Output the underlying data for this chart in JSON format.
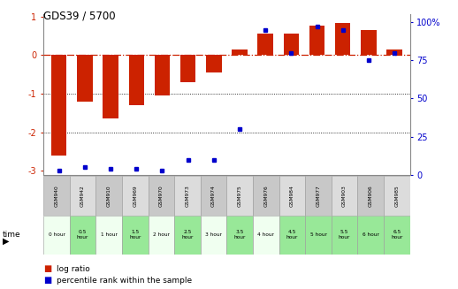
{
  "title": "GDS39 / 5700",
  "samples": [
    "GSM940",
    "GSM942",
    "GSM910",
    "GSM969",
    "GSM970",
    "GSM973",
    "GSM974",
    "GSM975",
    "GSM976",
    "GSM984",
    "GSM977",
    "GSM903",
    "GSM906",
    "GSM985"
  ],
  "times": [
    "0 hour",
    "0.5\nhour",
    "1 hour",
    "1.5\nhour",
    "2 hour",
    "2.5\nhour",
    "3 hour",
    "3.5\nhour",
    "4 hour",
    "4.5\nhour",
    "5 hour",
    "5.5\nhour",
    "6 hour",
    "6.5\nhour"
  ],
  "log_ratio": [
    -2.6,
    -1.2,
    -1.65,
    -1.3,
    -1.05,
    -0.7,
    -0.45,
    0.15,
    0.55,
    0.55,
    0.75,
    0.82,
    0.65,
    0.15
  ],
  "percentile": [
    3,
    5,
    4,
    4,
    3,
    10,
    10,
    30,
    95,
    80,
    97,
    95,
    75,
    80
  ],
  "bar_color": "#cc2200",
  "dot_color": "#0000cc",
  "zero_line_color": "#cc2200",
  "bg_color": "#ffffff",
  "grid_color": "#000000",
  "ylim": [
    -3.1,
    1.05
  ],
  "right_ylim": [
    0,
    105
  ],
  "right_yticks": [
    0,
    25,
    50,
    75,
    100
  ],
  "right_ytick_labels": [
    "0",
    "25",
    "50",
    "75",
    "100%"
  ],
  "left_yticks": [
    -3,
    -2,
    -1,
    0,
    1
  ],
  "time_bg_colors": [
    "#f0fff0",
    "#98e898",
    "#f0fff0",
    "#98e898",
    "#f0fff0",
    "#98e898",
    "#f0fff0",
    "#98e898",
    "#f0fff0",
    "#98e898",
    "#98e898",
    "#98e898",
    "#98e898",
    "#98e898"
  ],
  "sample_bg_colors": [
    "#c8c8c8",
    "#dcdcdc",
    "#c8c8c8",
    "#dcdcdc",
    "#c8c8c8",
    "#dcdcdc",
    "#c8c8c8",
    "#dcdcdc",
    "#c8c8c8",
    "#dcdcdc",
    "#c8c8c8",
    "#dcdcdc",
    "#c8c8c8",
    "#dcdcdc"
  ]
}
